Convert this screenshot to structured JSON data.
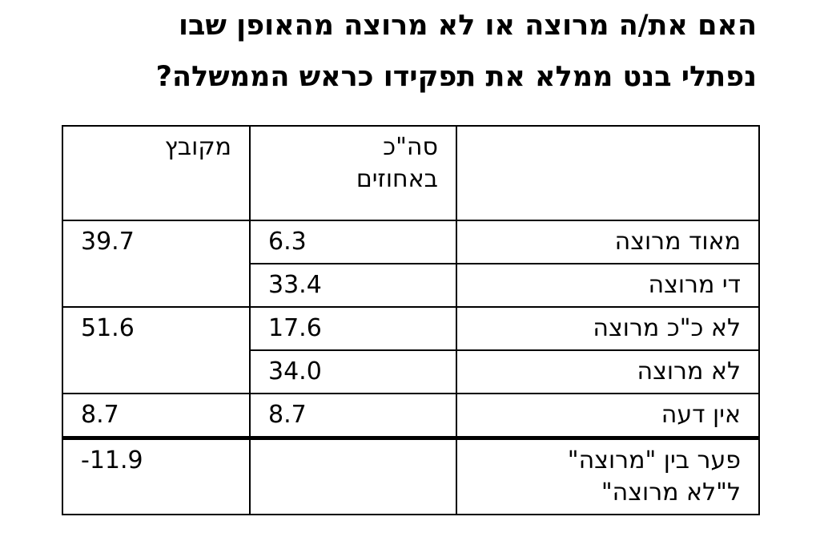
{
  "title": {
    "line1": "האם את/ה מרוצה או לא מרוצה מהאופן שבו",
    "line2": "נפתלי בנט ממלא את תפקידו כראש הממשלה?"
  },
  "table": {
    "headers": {
      "label": "",
      "total_line1": "סה\"כ",
      "total_line2": "באחוזים",
      "combined": "מקובץ"
    },
    "rows": [
      {
        "label": "מאוד מרוצה",
        "total": "6.3"
      },
      {
        "label": "די מרוצה",
        "total": "33.4"
      },
      {
        "label": "לא כ\"כ מרוצה",
        "total": "17.6"
      },
      {
        "label": "לא מרוצה",
        "total": "34.0"
      },
      {
        "label": "אין דעה",
        "total": "8.7"
      }
    ],
    "combined": {
      "satisfied": "39.7",
      "not_satisfied": "51.6",
      "no_opinion": "8.7"
    },
    "gap": {
      "label_line1": "פער בין \"מרוצה\"",
      "label_line2": "ל\"לא מרוצה\"",
      "total": "",
      "combined": "-11.9"
    }
  }
}
